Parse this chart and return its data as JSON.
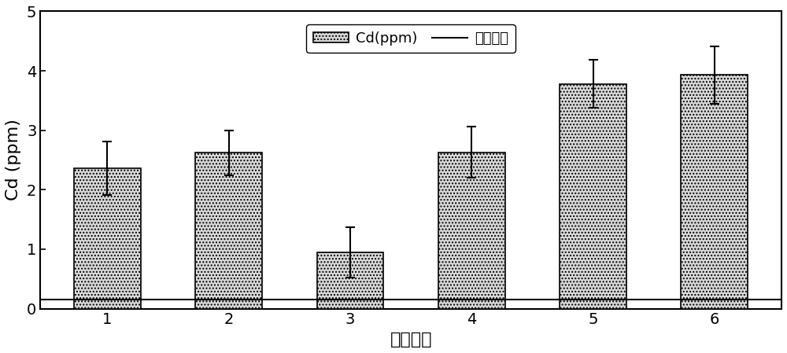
{
  "categories": [
    "1",
    "2",
    "3",
    "4",
    "5",
    "6"
  ],
  "values": [
    2.36,
    2.62,
    0.95,
    2.63,
    3.78,
    3.93
  ],
  "errors": [
    0.45,
    0.38,
    0.42,
    0.43,
    0.4,
    0.48
  ],
  "national_standard": 0.15,
  "bar_color": "#d8d8d8",
  "bar_edgecolor": "#000000",
  "hatch": "....",
  "ylabel": "Cd (ppm)",
  "xlabel": "样品编号",
  "ylim": [
    0,
    5
  ],
  "yticks": [
    0,
    1,
    2,
    3,
    4,
    5
  ],
  "legend_cd_label": "Cd(ppm)",
  "legend_standard_label": "国家标准",
  "bar_width": 0.55,
  "capsize": 4,
  "standard_linewidth": 1.5,
  "standard_color": "#000000",
  "label_fontsize": 16,
  "tick_fontsize": 14,
  "legend_fontsize": 13,
  "figure_facecolor": "#ffffff",
  "axes_facecolor": "#ffffff"
}
